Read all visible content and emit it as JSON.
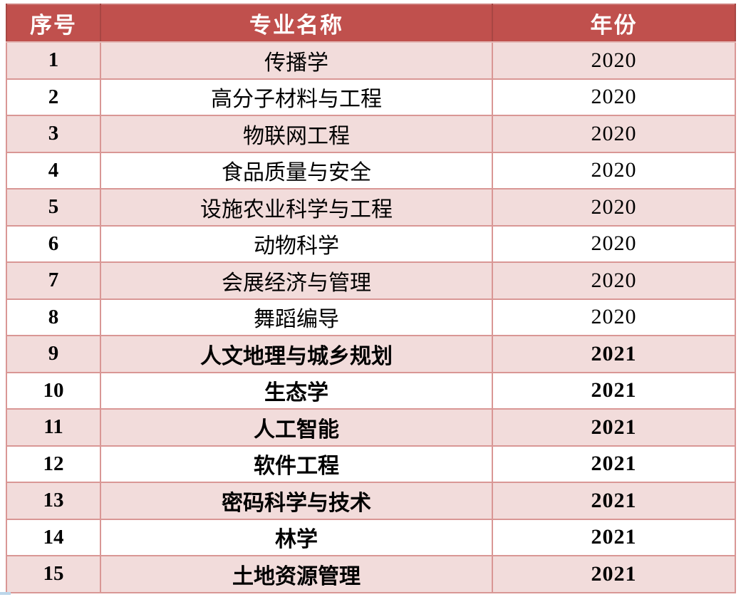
{
  "chart_data": {
    "type": "table",
    "title": "",
    "headers": [
      "序号",
      "专业名称",
      "年份"
    ],
    "rows": [
      {
        "no": "1",
        "major": "传播学",
        "year": "2020"
      },
      {
        "no": "2",
        "major": "高分子材料与工程",
        "year": "2020"
      },
      {
        "no": "3",
        "major": "物联网工程",
        "year": "2020"
      },
      {
        "no": "4",
        "major": "食品质量与安全",
        "year": "2020"
      },
      {
        "no": "5",
        "major": "设施农业科学与工程",
        "year": "2020"
      },
      {
        "no": "6",
        "major": "动物科学",
        "year": "2020"
      },
      {
        "no": "7",
        "major": "会展经济与管理",
        "year": "2020"
      },
      {
        "no": "8",
        "major": "舞蹈编导",
        "year": "2020"
      },
      {
        "no": "9",
        "major": "人文地理与城乡规划",
        "year": "2021"
      },
      {
        "no": "10",
        "major": "生态学",
        "year": "2021"
      },
      {
        "no": "11",
        "major": "人工智能",
        "year": "2021"
      },
      {
        "no": "12",
        "major": "软件工程",
        "year": "2021"
      },
      {
        "no": "13",
        "major": "密码科学与技术",
        "year": "2021"
      },
      {
        "no": "14",
        "major": "林学",
        "year": "2021"
      },
      {
        "no": "15",
        "major": "土地资源管理",
        "year": "2021"
      }
    ],
    "colors": {
      "header_bg": "#C0504D",
      "header_text": "#FFFFFF",
      "band_pink": "#F2DCDB",
      "band_white": "#FFFFFF",
      "border": "#D99795",
      "body_text": "#000000"
    },
    "layout": {
      "banding": "odd rows pink, even rows white",
      "bold_rows": "rows 9-15 (year 2021)"
    }
  }
}
